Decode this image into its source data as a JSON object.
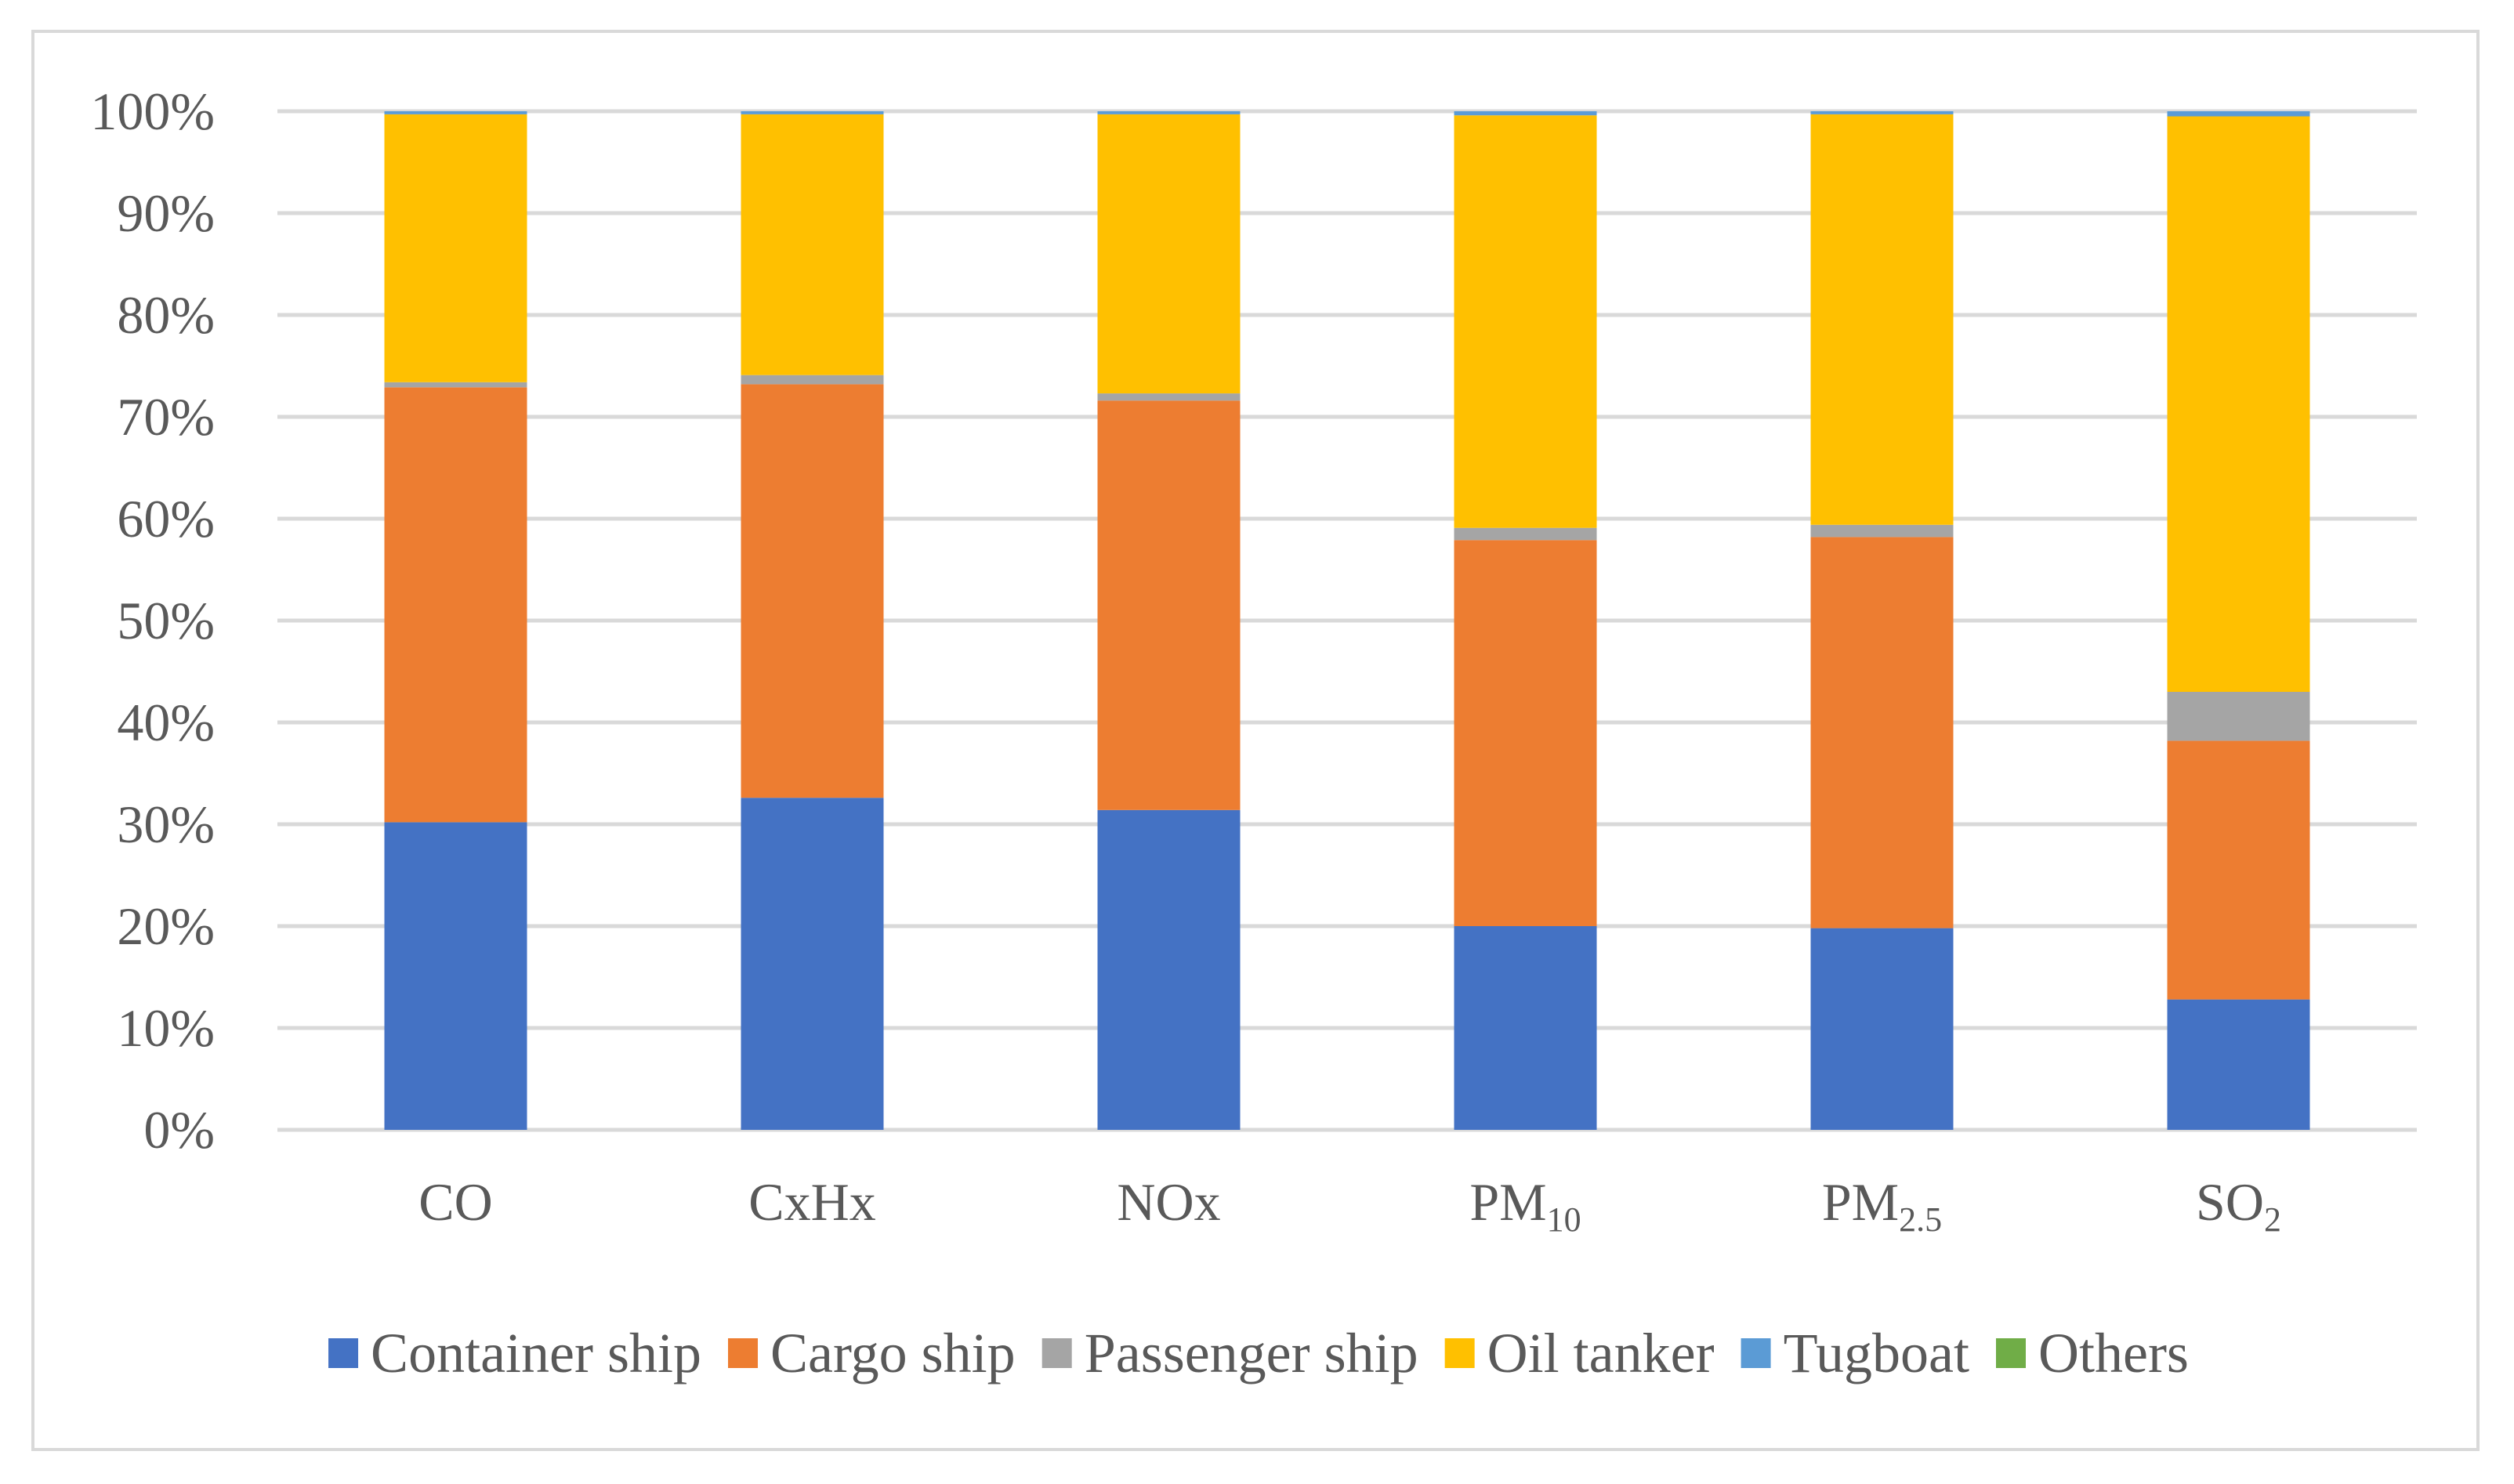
{
  "chart_data": {
    "type": "bar",
    "stacked": true,
    "title": "",
    "xlabel": "",
    "ylabel": "",
    "ylim": [
      0,
      100
    ],
    "y_ticks": [
      "0%",
      "10%",
      "20%",
      "30%",
      "40%",
      "50%",
      "60%",
      "70%",
      "80%",
      "90%",
      "100%"
    ],
    "categories": [
      {
        "main": "CO",
        "sub": ""
      },
      {
        "main": "CxHx",
        "sub": ""
      },
      {
        "main": "NOx",
        "sub": ""
      },
      {
        "main": "PM",
        "sub": "10"
      },
      {
        "main": "PM",
        "sub": "2.5"
      },
      {
        "main": "SO",
        "sub": "2"
      }
    ],
    "series": [
      {
        "name": "Container ship",
        "color": "#4472C4",
        "values": [
          30.2,
          32.6,
          31.4,
          20.0,
          19.8,
          12.8
        ]
      },
      {
        "name": "Cargo ship",
        "color": "#ED7D31",
        "values": [
          42.7,
          40.6,
          40.2,
          37.9,
          38.4,
          25.4
        ]
      },
      {
        "name": "Passenger ship",
        "color": "#A5A5A5",
        "values": [
          0.5,
          0.9,
          0.7,
          1.2,
          1.2,
          4.8
        ]
      },
      {
        "name": "Oil tanker",
        "color": "#FFC000",
        "values": [
          26.3,
          25.6,
          27.4,
          40.5,
          40.3,
          56.5
        ]
      },
      {
        "name": "Tugboat",
        "color": "#5B9BD5",
        "values": [
          0.3,
          0.3,
          0.3,
          0.4,
          0.3,
          0.5
        ]
      },
      {
        "name": "Others",
        "color": "#70AD47",
        "values": [
          0.0,
          0.0,
          0.0,
          0.0,
          0.0,
          0.0
        ]
      }
    ],
    "legend_position": "bottom",
    "grid": true,
    "grid_color": "#d9d9d9"
  }
}
